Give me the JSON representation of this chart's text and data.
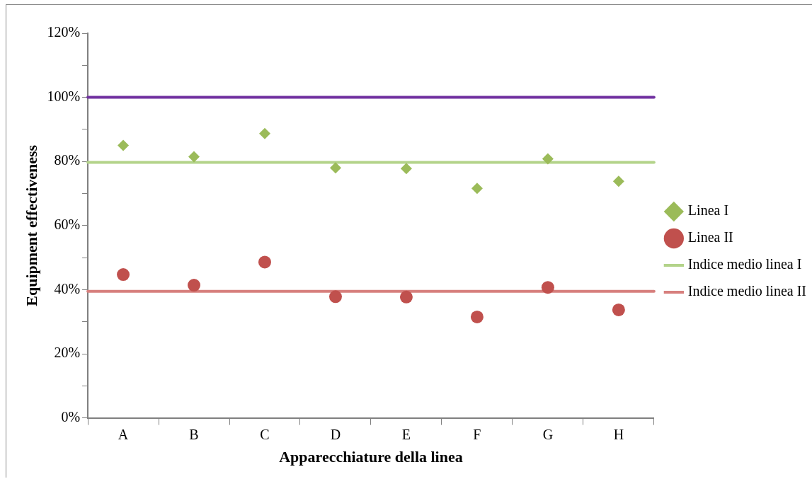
{
  "chart_data": {
    "type": "scatter",
    "xlabel": "Apparecchiature della linea",
    "ylabel": "Equipment effectiveness",
    "categories": [
      "A",
      "B",
      "C",
      "D",
      "E",
      "F",
      "G",
      "H"
    ],
    "series": [
      {
        "name": "Linea I",
        "color": "#9bbb59",
        "marker": "diamond",
        "values": [
          85,
          81.5,
          88.7,
          78,
          77.8,
          71.6,
          80.8,
          73.8
        ]
      },
      {
        "name": "Linea II",
        "color": "#c0504d",
        "marker": "circle",
        "values": [
          44.7,
          41.4,
          48.6,
          37.8,
          37.7,
          31.5,
          40.7,
          33.7
        ]
      }
    ],
    "ref_lines": [
      {
        "axis": "y",
        "value": 100,
        "color": "#7030a0"
      },
      {
        "axis": "y",
        "value": 79.7,
        "label": "Indice medio linea I",
        "color": "#b3d38a"
      },
      {
        "axis": "y",
        "value": 39.5,
        "label": "Indice medio linea II",
        "color": "#d77f7d"
      }
    ],
    "ylim": [
      0,
      120
    ],
    "yticks": [
      {
        "value": 0,
        "label": "0%"
      },
      {
        "value": 10,
        "label": null
      },
      {
        "value": 20,
        "label": "20%"
      },
      {
        "value": 30,
        "label": null
      },
      {
        "value": 40,
        "label": "40%"
      },
      {
        "value": 50,
        "label": null
      },
      {
        "value": 60,
        "label": "60%"
      },
      {
        "value": 70,
        "label": null
      },
      {
        "value": 80,
        "label": "80%"
      },
      {
        "value": 90,
        "label": null
      },
      {
        "value": 100,
        "label": "100%"
      },
      {
        "value": 110,
        "label": null
      },
      {
        "value": 120,
        "label": "120%"
      }
    ],
    "grid": false,
    "legend": "right"
  }
}
